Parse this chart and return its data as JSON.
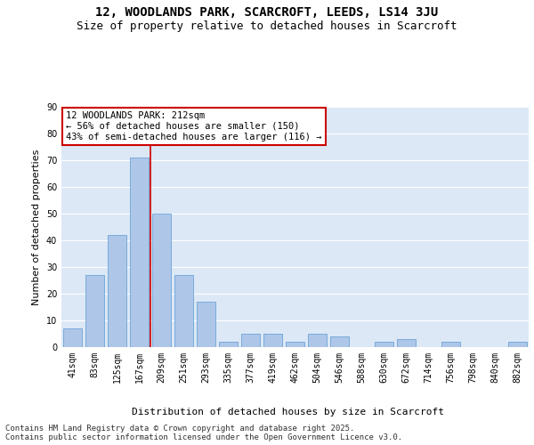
{
  "title": "12, WOODLANDS PARK, SCARCROFT, LEEDS, LS14 3JU",
  "subtitle": "Size of property relative to detached houses in Scarcroft",
  "xlabel": "Distribution of detached houses by size in Scarcroft",
  "ylabel": "Number of detached properties",
  "categories": [
    "41sqm",
    "83sqm",
    "125sqm",
    "167sqm",
    "209sqm",
    "251sqm",
    "293sqm",
    "335sqm",
    "377sqm",
    "419sqm",
    "462sqm",
    "504sqm",
    "546sqm",
    "588sqm",
    "630sqm",
    "672sqm",
    "714sqm",
    "756sqm",
    "798sqm",
    "840sqm",
    "882sqm"
  ],
  "values": [
    7,
    27,
    42,
    71,
    50,
    27,
    17,
    2,
    5,
    5,
    2,
    5,
    4,
    0,
    2,
    3,
    0,
    2,
    0,
    0,
    2
  ],
  "bar_color": "#aec6e8",
  "bar_edge_color": "#5b9bd5",
  "vline_x_index": 4,
  "vline_color": "#cc0000",
  "annotation_line1": "12 WOODLANDS PARK: 212sqm",
  "annotation_line2": "← 56% of detached houses are smaller (150)",
  "annotation_line3": "43% of semi-detached houses are larger (116) →",
  "annotation_box_color": "#cc0000",
  "ylim": [
    0,
    90
  ],
  "yticks": [
    0,
    10,
    20,
    30,
    40,
    50,
    60,
    70,
    80,
    90
  ],
  "background_color": "#dce8f5",
  "grid_color": "#ffffff",
  "footer_line1": "Contains HM Land Registry data © Crown copyright and database right 2025.",
  "footer_line2": "Contains public sector information licensed under the Open Government Licence v3.0.",
  "title_fontsize": 10,
  "subtitle_fontsize": 9,
  "axis_label_fontsize": 8,
  "tick_fontsize": 7,
  "annotation_fontsize": 7.5,
  "footer_fontsize": 6.5
}
